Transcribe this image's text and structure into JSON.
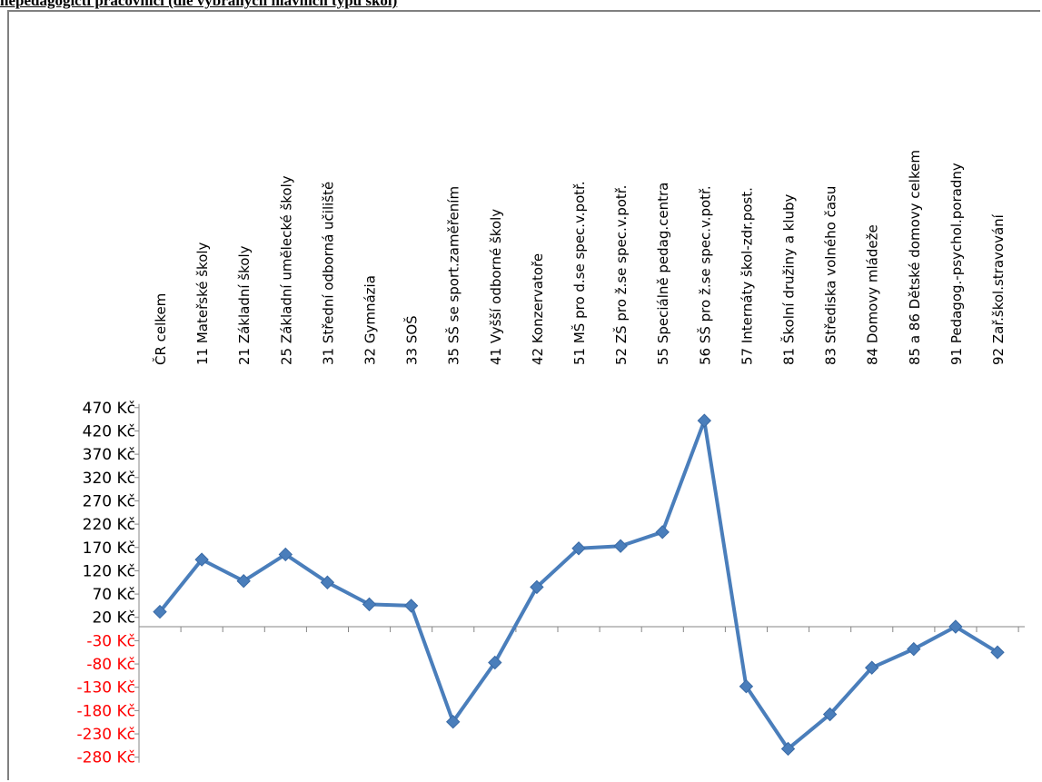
{
  "header": {
    "title": "nepedagogičtí pracovníci (dle vybraných hlavních typů škol)"
  },
  "chart_data": {
    "type": "line",
    "title": "nepedagogičtí pracovníci (dle vybraných hlavních typů škol)",
    "xlabel": "",
    "ylabel": "",
    "categories": [
      "ČR celkem",
      "11 Mateřské školy",
      "21 Základní školy",
      "25 Základní umělecké školy",
      "31 Střední odborná učiliště",
      "32 Gymnázia",
      "33 SOŠ",
      "35 SŠ se sport.zaměřením",
      "41 Vyšší odborné školy",
      "42 Konzervatoře",
      "51 MŠ pro d.se spec.v.potř.",
      "52 ZŠ pro ž.se spec.v.potř.",
      "55 Speciálně pedag.centra",
      "56 SŠ pro ž.se spec.v.potř.",
      "57 Internáty škol-zdr.post.",
      "81 Školní družiny a kluby",
      "83 Střediska volného času",
      "84 Domovy mládeže",
      "85 a 86 Dětské domovy celkem",
      "91 Pedagog.-psychol.poradny",
      "92 Zař.škol.stravování"
    ],
    "series": [
      {
        "values": [
          32,
          144,
          98,
          155,
          95,
          48,
          45,
          -204,
          -77,
          85,
          168,
          173,
          203,
          442,
          -128,
          -262,
          -188,
          -88,
          -48,
          0,
          -55
        ],
        "color": "#4a7ebb",
        "marker": "diamond"
      }
    ],
    "yticks": [
      {
        "value": 470,
        "label": "470 Kč"
      },
      {
        "value": 420,
        "label": "420 Kč"
      },
      {
        "value": 370,
        "label": "370 Kč"
      },
      {
        "value": 320,
        "label": "320 Kč"
      },
      {
        "value": 270,
        "label": "270 Kč"
      },
      {
        "value": 220,
        "label": "220 Kč"
      },
      {
        "value": 170,
        "label": "170 Kč"
      },
      {
        "value": 120,
        "label": "120 Kč"
      },
      {
        "value": 70,
        "label": "70 Kč"
      },
      {
        "value": 20,
        "label": "20 Kč"
      },
      {
        "value": -30,
        "label": "-30 Kč"
      },
      {
        "value": -80,
        "label": "-80 Kč"
      },
      {
        "value": -130,
        "label": "-130 Kč"
      },
      {
        "value": -180,
        "label": "-180 Kč"
      },
      {
        "value": -230,
        "label": "-230 Kč"
      },
      {
        "value": -280,
        "label": "-280 Kč"
      }
    ],
    "ylim": [
      -300,
      500
    ],
    "positive_tick_color": "#000000",
    "negative_tick_color": "#ff0000",
    "grid": false,
    "legend": "none"
  }
}
